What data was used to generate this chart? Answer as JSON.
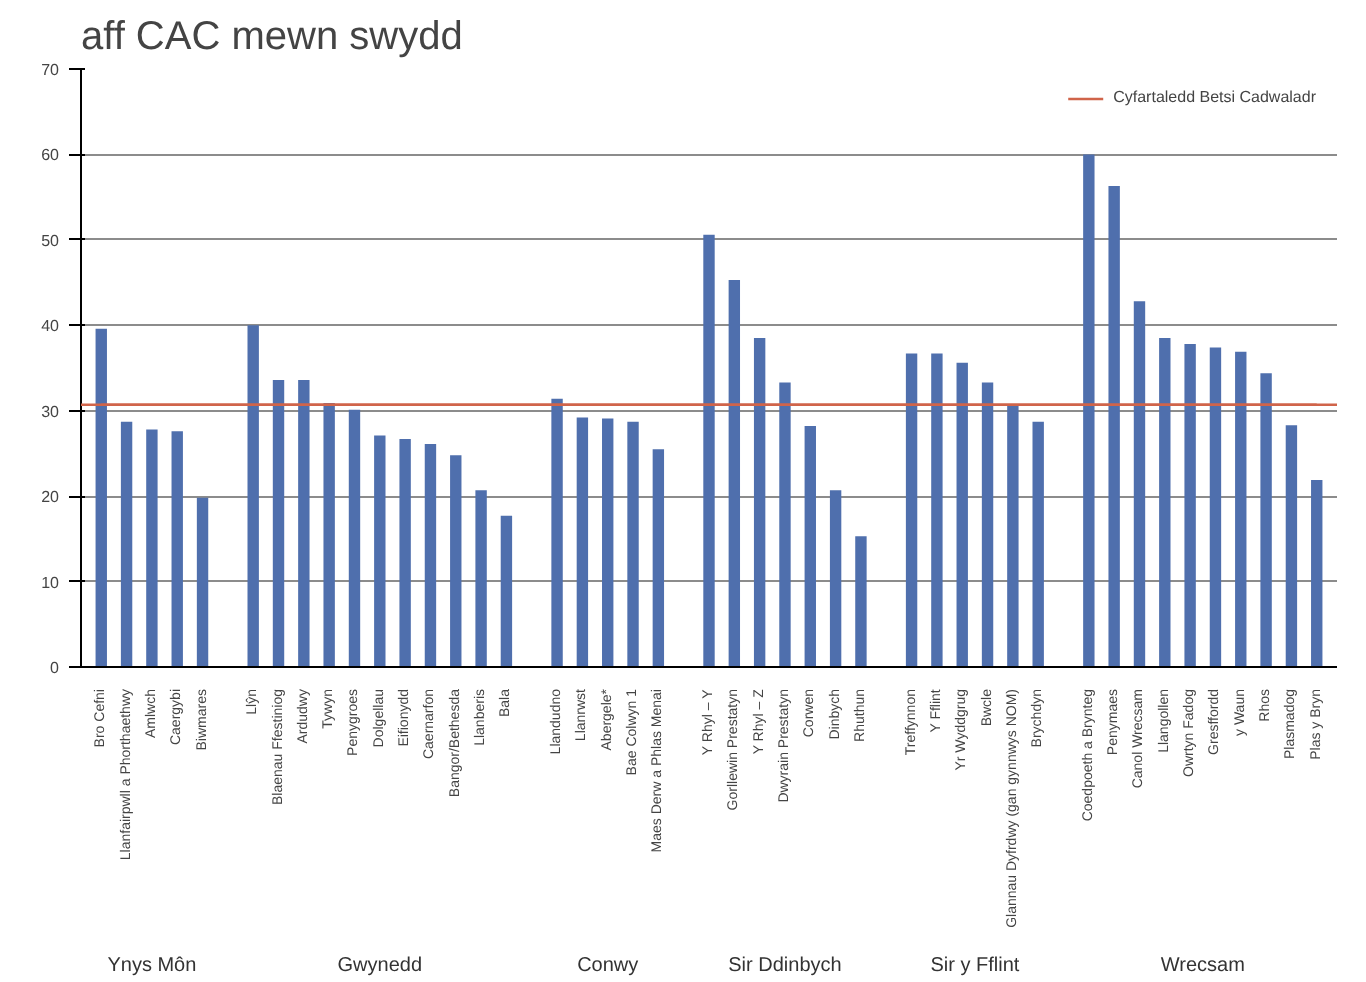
{
  "chart_data": {
    "type": "bar",
    "title": "aff CAC mewn swydd",
    "categories": [
      "Bro Cefni",
      "Llanfairpwll a Phorthaethwy",
      "Amlwch",
      "Caergybi",
      "Biwmares",
      null,
      "Llŷn",
      "Blaenau Ffestiniog",
      "Ardudwy",
      "Tywyn",
      "Penygroes",
      "Dolgellau",
      "Eifionydd",
      "Caernarfon",
      "Bangor/Bethesda",
      "Llanberis",
      "Bala",
      null,
      "Llandudno",
      "Llanrwst",
      "Abergele*",
      "Bae Colwyn 1",
      "Maes Derw a Phlas Menai",
      null,
      "Y Rhyl – Y",
      "Gorllewin Prestatyn",
      "Y Rhyl – Z",
      "Dwyrain Prestatyn",
      "Corwen",
      "Dinbych",
      "Rhuthun",
      null,
      "Treffynnon",
      "Y Fflint",
      "Yr Wyddgrug",
      "Bwcle",
      "Glannau Dyfrdwy (gan gynnwys NOM)",
      "Brychdyn",
      null,
      "Coedpoeth a Brynteg",
      "Penymaes",
      "Canol Wrecsam",
      "Llangollen",
      "Owrtyn Fadog",
      "Gresffordd",
      "y Waun",
      "Rhos",
      "Plasmadog",
      "Plas y Bryn"
    ],
    "values": [
      39.6,
      28.7,
      27.8,
      27.6,
      19.8,
      null,
      40.0,
      33.6,
      33.6,
      30.9,
      30.1,
      27.1,
      26.7,
      26.1,
      24.8,
      20.7,
      17.7,
      null,
      31.4,
      29.2,
      29.1,
      28.7,
      25.5,
      null,
      50.6,
      45.3,
      38.5,
      33.3,
      28.2,
      20.7,
      15.3,
      null,
      36.7,
      36.7,
      35.6,
      33.3,
      30.7,
      28.7,
      null,
      60.0,
      56.3,
      42.8,
      38.5,
      37.8,
      37.4,
      36.9,
      34.4,
      28.3,
      21.9
    ],
    "color": "#4f6fad",
    "ylim": [
      0,
      70
    ],
    "yticks": [
      0,
      10,
      20,
      30,
      40,
      50,
      60,
      70
    ],
    "grid": "y",
    "ref_lines": [
      {
        "axis": "y",
        "value": 30.7,
        "label": "Cyfartaledd Betsi Cadwaladr",
        "color": "#d0644a"
      }
    ],
    "annotations": [
      "Ynys Môn",
      "Gwynedd",
      "Conwy",
      "Sir Ddinbych",
      "Sir y Fflint",
      "Wrecsam"
    ],
    "legend": "top right"
  }
}
